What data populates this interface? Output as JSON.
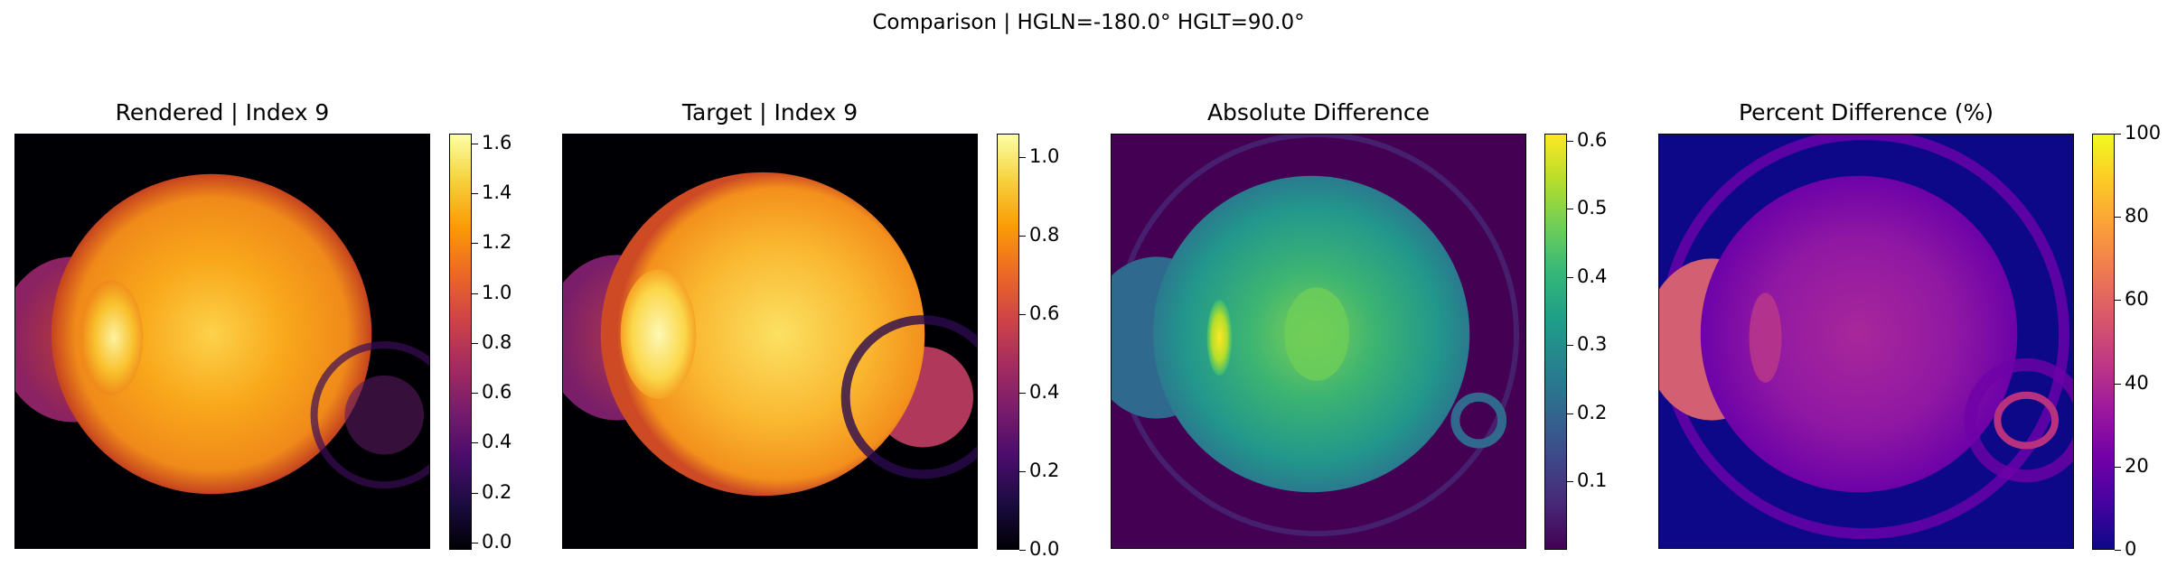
{
  "figure": {
    "title": "Comparison | HGLN=-180.0° HGLT=90.0°"
  },
  "chart_data": [
    {
      "type": "heatmap",
      "title": "Rendered | Index 9",
      "colormap": "inferno",
      "colorbar": {
        "min": -0.03,
        "max": 1.64,
        "ticks": [
          0.0,
          0.2,
          0.4,
          0.6,
          0.8,
          1.0,
          1.2,
          1.4,
          1.6
        ],
        "tick_labels": [
          "0.0",
          "0.2",
          "0.4",
          "0.6",
          "0.8",
          "1.0",
          "1.2",
          "1.4",
          "1.6"
        ]
      }
    },
    {
      "type": "heatmap",
      "title": "Target | Index 9",
      "colormap": "inferno",
      "colorbar": {
        "min": 0.0,
        "max": 1.06,
        "ticks": [
          0.0,
          0.2,
          0.4,
          0.6,
          0.8,
          1.0
        ],
        "tick_labels": [
          "0.0",
          "0.2",
          "0.4",
          "0.6",
          "0.8",
          "1.0"
        ]
      }
    },
    {
      "type": "heatmap",
      "title": "Absolute Difference",
      "colormap": "viridis",
      "colorbar": {
        "min": 0.0,
        "max": 0.61,
        "ticks": [
          0.1,
          0.2,
          0.3,
          0.4,
          0.5,
          0.6
        ],
        "tick_labels": [
          "0.1",
          "0.2",
          "0.3",
          "0.4",
          "0.5",
          "0.6"
        ]
      }
    },
    {
      "type": "heatmap",
      "title": "Percent Difference (%)",
      "colormap": "plasma",
      "colorbar": {
        "min": 0,
        "max": 100,
        "ticks": [
          0,
          20,
          40,
          60,
          80,
          100
        ],
        "tick_labels": [
          "0",
          "20",
          "40",
          "60",
          "80",
          "100"
        ]
      }
    }
  ],
  "colors": {
    "inferno": [
      "#000004",
      "#1b0c41",
      "#4a0c6b",
      "#781c6d",
      "#a52c60",
      "#cf4446",
      "#ed6925",
      "#fb9b06",
      "#f7d13d",
      "#fcffa4"
    ],
    "viridis": [
      "#440154",
      "#482878",
      "#3e4989",
      "#31688e",
      "#26828e",
      "#1f9e89",
      "#35b779",
      "#6ece58",
      "#b5de2b",
      "#fde725"
    ],
    "plasma": [
      "#0d0887",
      "#46039f",
      "#7201a8",
      "#9c179e",
      "#bd3786",
      "#d8576b",
      "#ed7953",
      "#fb9f3a",
      "#fdca26",
      "#f0f921"
    ]
  }
}
